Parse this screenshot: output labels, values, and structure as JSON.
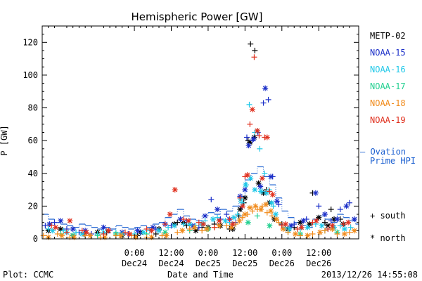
{
  "chart_data": {
    "type": "scatter",
    "title": "Hemispheric Power [GW]",
    "xlabel": "Date and Time",
    "ylabel": "P [GW]",
    "footer_left": "Plot: CCMC",
    "footer_right": "2013/12/26 14:55:08",
    "ylim": [
      0,
      130
    ],
    "yticks": [
      "0",
      "20",
      "40",
      "60",
      "80",
      "100",
      "120"
    ],
    "xlim_hours": [
      -15,
      36.5
    ],
    "xticks": [
      {
        "hour": 0,
        "line1": "0:00",
        "line2": "Dec24"
      },
      {
        "hour": 6,
        "line1": "12:00",
        "line2": "Dec24"
      },
      {
        "hour": 12,
        "line1": "0:00",
        "line2": "Dec25"
      },
      {
        "hour": 18,
        "line1": "12:00",
        "line2": "Dec25"
      },
      {
        "hour": 24,
        "line1": "0:00",
        "line2": "Dec26"
      },
      {
        "hour": 30,
        "line1": "12:00",
        "line2": "Dec26"
      }
    ],
    "legend": {
      "position": "right",
      "satellites": [
        {
          "name": "METP-02",
          "color": "#000000"
        },
        {
          "name": "NOAA-15",
          "color": "#1b2fc8"
        },
        {
          "name": "NOAA-16",
          "color": "#1fc8e8"
        },
        {
          "name": "NOAA-17",
          "color": "#22d090"
        },
        {
          "name": "NOAA-18",
          "color": "#f08a1a"
        },
        {
          "name": "NOAA-19",
          "color": "#e0301e"
        }
      ],
      "ovation": {
        "line1": "— Ovation",
        "line2": "Prime HPI",
        "color": "#1a5fd0"
      },
      "south": "+ south",
      "north": "* north"
    },
    "ovation_series": {
      "x": [
        -15,
        -14,
        -13,
        -12,
        -11,
        -10,
        -9,
        -8,
        -7,
        -6,
        -5,
        -4,
        -3,
        -2,
        -1,
        0,
        1,
        2,
        3,
        4,
        5,
        6,
        7,
        8,
        9,
        10,
        11,
        12,
        13,
        14,
        15,
        16,
        17,
        18,
        19,
        20,
        21,
        22,
        23,
        24,
        25,
        26,
        27,
        28,
        29,
        30,
        31,
        32,
        33,
        34,
        35,
        36
      ],
      "values": [
        15,
        12,
        10,
        9,
        8,
        7,
        9,
        8,
        7,
        6,
        7,
        6,
        8,
        7,
        6,
        7,
        8,
        7,
        9,
        10,
        13,
        15,
        18,
        14,
        12,
        11,
        14,
        16,
        15,
        18,
        17,
        20,
        26,
        36,
        40,
        44,
        38,
        33,
        25,
        17,
        13,
        10,
        8,
        7,
        12,
        14,
        12,
        10,
        15,
        13,
        11,
        9
      ]
    },
    "series": [
      {
        "name": "METP-02",
        "color": "#000000",
        "south": [
          [
            -8.2,
            3
          ],
          [
            -4.5,
            4
          ],
          [
            0.5,
            2
          ],
          [
            3.5,
            3
          ],
          [
            7,
            10
          ],
          [
            8.5,
            8
          ],
          [
            11,
            7
          ],
          [
            13,
            9
          ],
          [
            15.5,
            6
          ],
          [
            17,
            14
          ],
          [
            17.8,
            22
          ],
          [
            18.5,
            60
          ],
          [
            18.9,
            119
          ],
          [
            19.6,
            115
          ],
          [
            20,
            66
          ],
          [
            21.5,
            30
          ],
          [
            24,
            9
          ],
          [
            26,
            7
          ],
          [
            29,
            28
          ],
          [
            31,
            10
          ],
          [
            32,
            18
          ],
          [
            33.5,
            12
          ]
        ],
        "north": [
          [
            -14,
            5
          ],
          [
            -12,
            6
          ],
          [
            -10,
            2
          ],
          [
            -6,
            4
          ],
          [
            -2,
            2
          ],
          [
            1,
            4
          ],
          [
            4,
            6
          ],
          [
            6.5,
            9
          ],
          [
            8,
            10
          ],
          [
            10,
            5
          ],
          [
            12,
            7
          ],
          [
            14,
            8
          ],
          [
            16,
            6
          ],
          [
            17.2,
            18
          ],
          [
            18,
            25
          ],
          [
            18.8,
            59
          ],
          [
            19.5,
            62
          ],
          [
            20.2,
            34
          ],
          [
            21,
            28
          ],
          [
            22,
            22
          ],
          [
            22.8,
            12
          ],
          [
            25,
            6
          ],
          [
            27,
            10
          ],
          [
            28.5,
            9
          ],
          [
            30,
            13
          ],
          [
            31.5,
            8
          ],
          [
            32.5,
            12
          ],
          [
            34,
            9
          ]
        ]
      },
      {
        "name": "NOAA-15",
        "color": "#1b2fc8",
        "south": [
          [
            -14.5,
            8
          ],
          [
            -13,
            10
          ],
          [
            -11,
            6
          ],
          [
            -9,
            4
          ],
          [
            -7,
            3
          ],
          [
            -4,
            5
          ],
          [
            -1,
            3
          ],
          [
            1,
            4
          ],
          [
            3.5,
            6
          ],
          [
            6,
            8
          ],
          [
            8.5,
            11
          ],
          [
            10.5,
            7
          ],
          [
            12.5,
            24
          ],
          [
            14,
            12
          ],
          [
            15,
            15
          ],
          [
            16.5,
            10
          ],
          [
            17.5,
            20
          ],
          [
            18.3,
            62
          ],
          [
            19.2,
            60
          ],
          [
            20.1,
            65
          ],
          [
            21,
            83
          ],
          [
            21.8,
            85
          ],
          [
            22.5,
            38
          ],
          [
            23.5,
            21
          ],
          [
            26,
            9
          ],
          [
            28,
            12
          ],
          [
            30,
            20
          ],
          [
            32,
            11
          ],
          [
            33.5,
            18
          ],
          [
            35,
            22
          ]
        ],
        "north": [
          [
            -13.8,
            9
          ],
          [
            -12,
            11
          ],
          [
            -10,
            6
          ],
          [
            -8,
            5
          ],
          [
            -5,
            7
          ],
          [
            -2,
            4
          ],
          [
            0.5,
            5
          ],
          [
            3,
            7
          ],
          [
            5,
            9
          ],
          [
            7.5,
            12
          ],
          [
            9.5,
            8
          ],
          [
            11.5,
            14
          ],
          [
            13.5,
            18
          ],
          [
            15.5,
            12
          ],
          [
            17.2,
            26
          ],
          [
            18,
            30
          ],
          [
            18.6,
            57
          ],
          [
            19.4,
            61
          ],
          [
            20.5,
            32
          ],
          [
            21.3,
            92
          ],
          [
            22.2,
            38
          ],
          [
            23.2,
            23
          ],
          [
            25.5,
            8
          ],
          [
            27.5,
            11
          ],
          [
            29.5,
            28
          ],
          [
            31,
            15
          ],
          [
            33,
            12
          ],
          [
            34.5,
            20
          ],
          [
            35.8,
            12
          ]
        ]
      },
      {
        "name": "NOAA-16",
        "color": "#1fc8e8",
        "south": [
          [
            -14,
            6
          ],
          [
            -11.5,
            5
          ],
          [
            -9.5,
            4
          ],
          [
            -6,
            3
          ],
          [
            -3,
            4
          ],
          [
            0,
            3
          ],
          [
            2.5,
            5
          ],
          [
            5.5,
            7
          ],
          [
            8,
            9
          ],
          [
            10,
            8
          ],
          [
            11.5,
            11
          ],
          [
            13.5,
            13
          ],
          [
            15.5,
            10
          ],
          [
            16.8,
            15
          ],
          [
            17.5,
            22
          ],
          [
            18.2,
            33
          ],
          [
            18.7,
            82
          ],
          [
            19.6,
            65
          ],
          [
            20.4,
            55
          ],
          [
            21.2,
            40
          ],
          [
            21.9,
            30
          ],
          [
            22.6,
            20
          ],
          [
            24.5,
            7
          ],
          [
            27,
            6
          ],
          [
            29.5,
            9
          ],
          [
            31.5,
            6
          ],
          [
            33.5,
            8
          ],
          [
            35.2,
            7
          ]
        ],
        "north": [
          [
            -13.3,
            5
          ],
          [
            -11,
            4
          ],
          [
            -8.5,
            3
          ],
          [
            -5,
            4
          ],
          [
            -2,
            3
          ],
          [
            1.5,
            4
          ],
          [
            4,
            5
          ],
          [
            6.5,
            8
          ],
          [
            9,
            9
          ],
          [
            11,
            9
          ],
          [
            12.8,
            12
          ],
          [
            14.8,
            11
          ],
          [
            16.2,
            13
          ],
          [
            17.3,
            24
          ],
          [
            18.1,
            33
          ],
          [
            18.9,
            37
          ],
          [
            19.6,
            30
          ],
          [
            20.6,
            29
          ],
          [
            21.5,
            28
          ],
          [
            22.3,
            22
          ],
          [
            23,
            15
          ],
          [
            25.2,
            6
          ],
          [
            28.2,
            7
          ],
          [
            30.5,
            8
          ],
          [
            32.5,
            7
          ],
          [
            34.2,
            6
          ]
        ]
      },
      {
        "name": "NOAA-17",
        "color": "#22d090",
        "south": [
          [
            -12,
            3
          ],
          [
            -6,
            2
          ],
          [
            2,
            3
          ],
          [
            9,
            5
          ],
          [
            16,
            8
          ],
          [
            20,
            14
          ],
          [
            25,
            4
          ],
          [
            31,
            5
          ]
        ],
        "north": [
          [
            -10,
            2
          ],
          [
            -3,
            3
          ],
          [
            5,
            4
          ],
          [
            12,
            6
          ],
          [
            18.5,
            10
          ],
          [
            22,
            8
          ],
          [
            27,
            3
          ],
          [
            33,
            4
          ]
        ]
      },
      {
        "name": "NOAA-18",
        "color": "#f08a1a",
        "south": [
          [
            -14.8,
            2
          ],
          [
            -12.5,
            3
          ],
          [
            -10.5,
            1
          ],
          [
            -8,
            2
          ],
          [
            -5.5,
            1
          ],
          [
            -3,
            2
          ],
          [
            -0.5,
            2
          ],
          [
            2,
            1
          ],
          [
            4.5,
            2
          ],
          [
            7,
            4
          ],
          [
            9,
            6
          ],
          [
            11,
            5
          ],
          [
            13,
            7
          ],
          [
            15,
            8
          ],
          [
            16.5,
            9
          ],
          [
            17.6,
            13
          ],
          [
            18.4,
            15
          ],
          [
            19.2,
            17
          ],
          [
            20,
            18
          ],
          [
            20.8,
            20
          ],
          [
            21.6,
            16
          ],
          [
            22.4,
            14
          ],
          [
            23.5,
            10
          ],
          [
            25,
            4
          ],
          [
            27,
            2
          ],
          [
            29,
            3
          ],
          [
            31,
            5
          ],
          [
            33,
            3
          ],
          [
            35,
            4
          ]
        ],
        "north": [
          [
            -14,
            1
          ],
          [
            -11.8,
            2
          ],
          [
            -9.8,
            1
          ],
          [
            -7.2,
            2
          ],
          [
            -4.8,
            1
          ],
          [
            -2.2,
            2
          ],
          [
            0.2,
            1
          ],
          [
            2.8,
            1
          ],
          [
            5.2,
            2
          ],
          [
            7.8,
            5
          ],
          [
            9.8,
            7
          ],
          [
            11.8,
            6
          ],
          [
            13.8,
            8
          ],
          [
            15.8,
            7
          ],
          [
            17.1,
            11
          ],
          [
            18,
            15
          ],
          [
            18.8,
            19
          ],
          [
            19.7,
            20
          ],
          [
            20.6,
            18
          ],
          [
            21.4,
            21
          ],
          [
            22.2,
            17
          ],
          [
            23.1,
            12
          ],
          [
            24.2,
            6
          ],
          [
            26.2,
            3
          ],
          [
            28.2,
            2
          ],
          [
            30.2,
            4
          ],
          [
            32.2,
            6
          ],
          [
            34.2,
            3
          ],
          [
            35.8,
            5
          ]
        ]
      },
      {
        "name": "NOAA-19",
        "color": "#e0301e",
        "south": [
          [
            -13.5,
            8
          ],
          [
            -11,
            4
          ],
          [
            -8.5,
            5
          ],
          [
            -5,
            3
          ],
          [
            -1.5,
            4
          ],
          [
            2,
            6
          ],
          [
            5,
            9
          ],
          [
            8,
            12
          ],
          [
            10.5,
            10
          ],
          [
            13,
            7
          ],
          [
            15.5,
            12
          ],
          [
            17.2,
            25
          ],
          [
            18,
            38
          ],
          [
            18.8,
            70
          ],
          [
            19.5,
            111
          ],
          [
            20.3,
            63
          ],
          [
            21.2,
            62
          ],
          [
            22,
            29
          ],
          [
            24,
            8
          ],
          [
            26.5,
            6
          ],
          [
            29,
            10
          ],
          [
            31.5,
            6
          ],
          [
            34,
            9
          ]
        ],
        "north": [
          [
            -12.8,
            7
          ],
          [
            -10.5,
            11
          ],
          [
            -7.8,
            4
          ],
          [
            -4.2,
            5
          ],
          [
            -0.8,
            3
          ],
          [
            2.8,
            5
          ],
          [
            5.8,
            15
          ],
          [
            6.6,
            30
          ],
          [
            8.8,
            11
          ],
          [
            11.2,
            9
          ],
          [
            13.8,
            11
          ],
          [
            16,
            9
          ],
          [
            17.6,
            20
          ],
          [
            18.4,
            39
          ],
          [
            19.2,
            79
          ],
          [
            20,
            66
          ],
          [
            20.8,
            37
          ],
          [
            21.6,
            62
          ],
          [
            22.5,
            27
          ],
          [
            24.6,
            9
          ],
          [
            27.2,
            7
          ],
          [
            29.6,
            11
          ],
          [
            32.2,
            8
          ],
          [
            34.8,
            10
          ]
        ]
      }
    ]
  }
}
